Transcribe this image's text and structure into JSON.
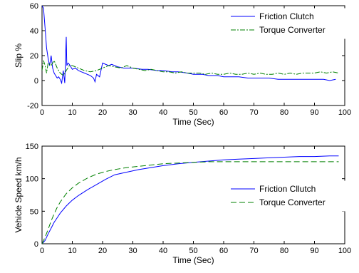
{
  "chart_data": [
    {
      "type": "line",
      "title": "",
      "xlabel": "Time (Sec)",
      "ylabel": "Slip %",
      "xlim": [
        0,
        100
      ],
      "ylim": [
        -20,
        60
      ],
      "xticks": [
        "0",
        "10",
        "20",
        "30",
        "40",
        "50",
        "60",
        "70",
        "80",
        "90",
        "100"
      ],
      "yticks": [
        "-20",
        "0",
        "20",
        "40",
        "60"
      ],
      "legend_position": "top-right",
      "series": [
        {
          "name": "Friction Clutch",
          "color": "#0000ff",
          "style": "solid",
          "x": [
            0,
            0.5,
            1,
            1.5,
            2,
            2.5,
            3,
            3.5,
            4,
            4.5,
            5,
            5.5,
            6,
            6.5,
            7,
            7.5,
            8,
            8.2,
            8.6,
            9,
            10,
            11,
            12,
            13,
            14,
            15,
            16,
            17,
            17.5,
            18,
            19,
            20,
            22,
            23,
            24,
            25,
            27,
            30,
            33,
            35,
            38,
            40,
            43,
            45,
            48,
            50,
            53,
            55,
            58,
            60,
            63,
            65,
            68,
            70,
            73,
            75,
            78,
            80,
            83,
            85,
            88,
            90,
            93,
            95,
            97
          ],
          "y": [
            60,
            58,
            42,
            26,
            18,
            12,
            20,
            10,
            6,
            4,
            2,
            3,
            1,
            -2,
            8,
            -2,
            35,
            12,
            14,
            13,
            9,
            10,
            8,
            7,
            6,
            5,
            4,
            2,
            -1,
            5,
            3,
            14,
            12,
            13,
            12,
            11,
            10,
            10,
            9,
            9,
            8,
            8,
            7,
            7,
            6,
            5,
            5,
            4,
            4,
            3,
            3,
            3,
            2,
            2,
            2,
            2,
            1,
            1,
            1,
            1,
            1,
            1,
            1,
            0,
            1
          ]
        },
        {
          "name": "Torque Converter",
          "color": "#008000",
          "style": "dashdot",
          "x": [
            0,
            0.5,
            1,
            1.5,
            2,
            3,
            4,
            5,
            6,
            7,
            8,
            9,
            10,
            12,
            14,
            16,
            18,
            20,
            22,
            24,
            26,
            28,
            30,
            32,
            34,
            36,
            38,
            40,
            42,
            44,
            46,
            48,
            50,
            52,
            54,
            56,
            58,
            60,
            62,
            64,
            66,
            68,
            70,
            72,
            74,
            76,
            78,
            80,
            82,
            84,
            86,
            88,
            90,
            92,
            94,
            96,
            98
          ],
          "y": [
            8,
            16,
            12,
            6,
            14,
            12,
            16,
            10,
            6,
            4,
            8,
            12,
            12,
            10,
            8,
            7,
            8,
            10,
            12,
            11,
            10,
            12,
            10,
            9,
            8,
            9,
            8,
            7,
            7,
            6,
            7,
            6,
            6,
            6,
            5,
            6,
            5,
            5,
            6,
            5,
            5,
            6,
            5,
            6,
            5,
            5,
            6,
            5,
            6,
            5,
            6,
            6,
            6,
            7,
            6,
            7,
            6
          ]
        }
      ]
    },
    {
      "type": "line",
      "title": "",
      "xlabel": "Time (Sec)",
      "ylabel": "Vehicle Speed km/h",
      "xlim": [
        0,
        100
      ],
      "ylim": [
        0,
        150
      ],
      "xticks": [
        "0",
        "10",
        "20",
        "30",
        "40",
        "50",
        "60",
        "70",
        "80",
        "90",
        "100"
      ],
      "yticks": [
        "0",
        "50",
        "100",
        "150"
      ],
      "legend_position": "right",
      "series": [
        {
          "name": "Friction Cllutch",
          "color": "#0000ff",
          "style": "solid",
          "x": [
            0,
            1,
            2,
            3,
            4,
            5,
            6,
            8,
            10,
            12,
            15,
            18,
            21,
            24,
            28,
            32,
            36,
            40,
            45,
            50,
            55,
            60,
            65,
            70,
            75,
            80,
            85,
            90,
            95,
            98
          ],
          "y": [
            0,
            5,
            15,
            24,
            33,
            40,
            47,
            58,
            67,
            74,
            83,
            91,
            99,
            106,
            110,
            114,
            117,
            120,
            123,
            125,
            127,
            129,
            130,
            131,
            132,
            133,
            134,
            134,
            135,
            135
          ]
        },
        {
          "name": "Torque Converter",
          "color": "#008000",
          "style": "dashdash",
          "x": [
            0,
            1,
            2,
            3,
            4,
            5,
            6,
            8,
            10,
            12,
            15,
            18,
            21,
            24,
            28,
            32,
            36,
            40,
            45,
            50,
            55,
            60,
            65,
            70,
            75,
            80,
            85,
            90,
            95,
            98
          ],
          "y": [
            0,
            10,
            22,
            35,
            46,
            56,
            64,
            77,
            86,
            93,
            101,
            107,
            111,
            114,
            117,
            119,
            121,
            123,
            124,
            125,
            126,
            126,
            126,
            126,
            126,
            126,
            126,
            126,
            126,
            126
          ]
        }
      ]
    }
  ]
}
